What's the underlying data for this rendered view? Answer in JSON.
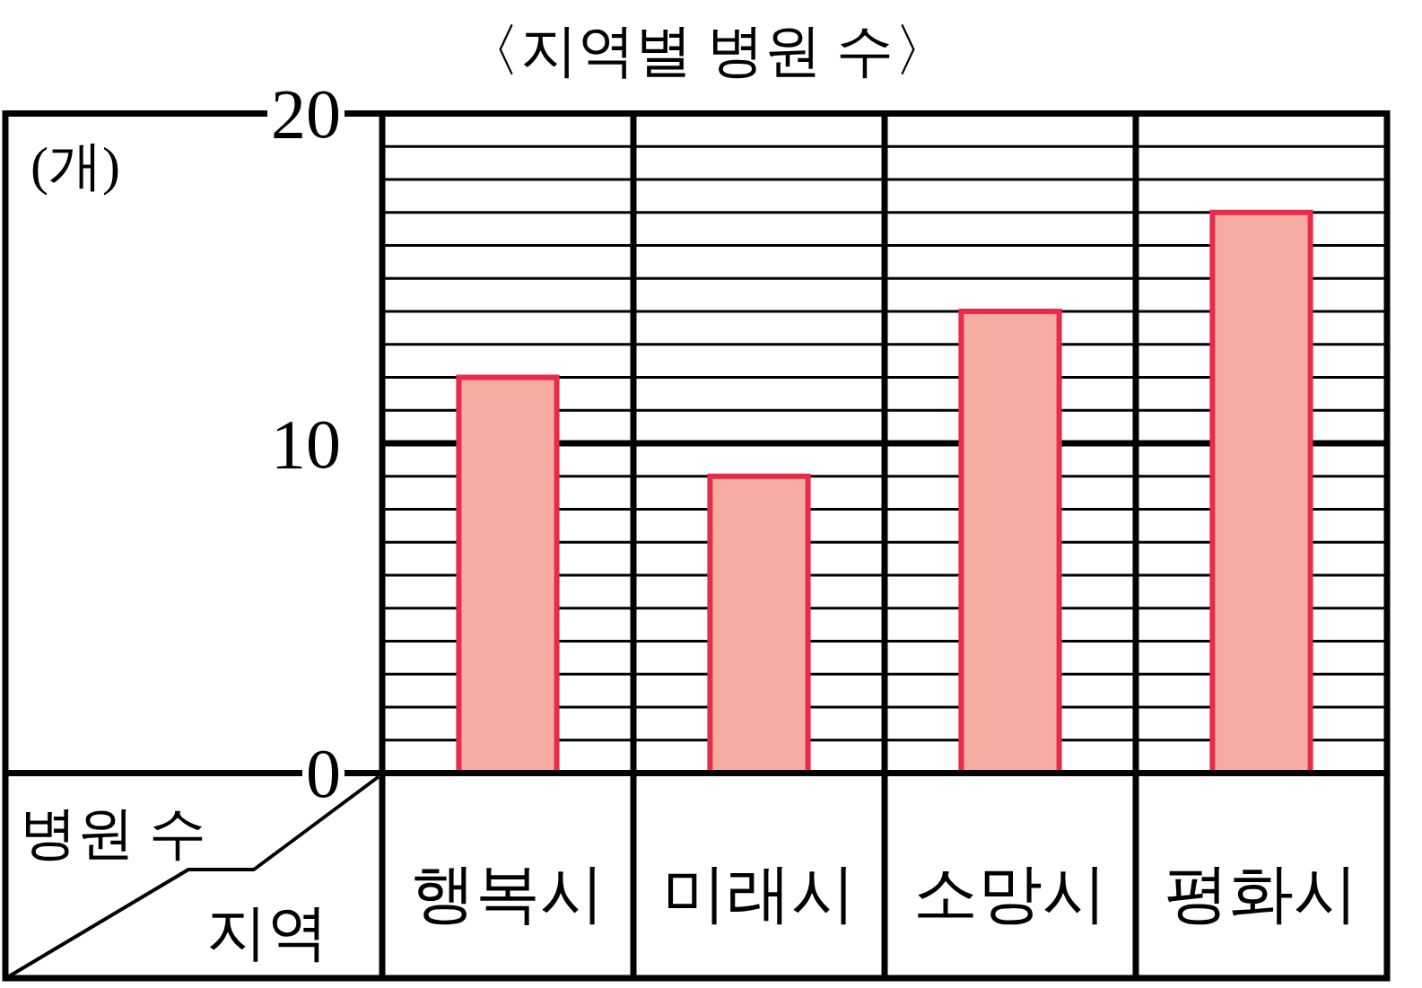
{
  "chart_data": {
    "type": "bar",
    "title": "〈지역별 병원 수〉",
    "xlabel": "지역",
    "ylabel": "병원 수",
    "annotations": [
      "(개)"
    ],
    "categories": [
      "행복시",
      "미래시",
      "소망시",
      "평화시"
    ],
    "values": [
      12,
      9,
      14,
      17
    ],
    "color": "#f6aca0",
    "ylim": [
      0,
      20
    ],
    "yticks": [
      0,
      {
        "value": 1,
        "label": null
      },
      {
        "value": 2,
        "label": null
      },
      {
        "value": 3,
        "label": null
      },
      {
        "value": 4,
        "label": null
      },
      {
        "value": 5,
        "label": null
      },
      {
        "value": 6,
        "label": null
      },
      {
        "value": 7,
        "label": null
      },
      {
        "value": 8,
        "label": null
      },
      {
        "value": 9,
        "label": null
      },
      10,
      {
        "value": 11,
        "label": null
      },
      {
        "value": 12,
        "label": null
      },
      {
        "value": 13,
        "label": null
      },
      {
        "value": 14,
        "label": null
      },
      {
        "value": 15,
        "label": null
      },
      {
        "value": 16,
        "label": null
      },
      {
        "value": 17,
        "label": null
      },
      {
        "value": 18,
        "label": null
      },
      {
        "value": 19,
        "label": null
      },
      20
    ],
    "grid": "y"
  }
}
